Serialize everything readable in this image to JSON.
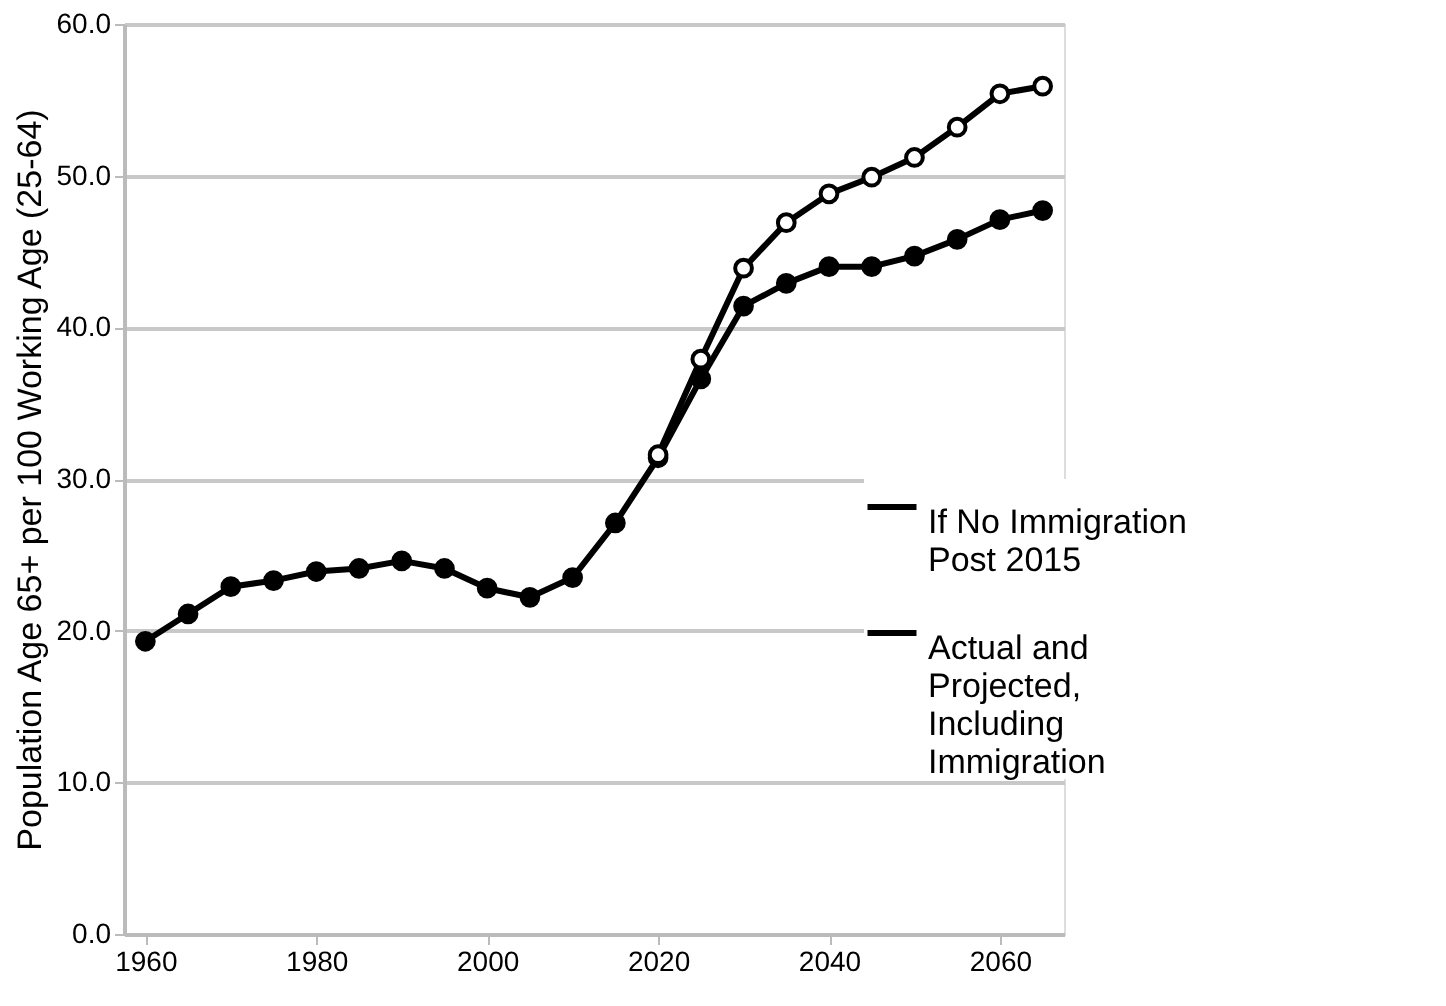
{
  "chart_data": {
    "type": "line",
    "ylabel": "Population Age 65+ per 100 Working Age (25-64)",
    "xlim": [
      1957.5,
      2067.5
    ],
    "xticks": [
      1960,
      1980,
      2000,
      2020,
      2040,
      2060
    ],
    "ylim": [
      0,
      60
    ],
    "yticks": [
      {
        "value": 0,
        "label": "0.0"
      },
      {
        "value": 10,
        "label": "10.0"
      },
      {
        "value": 20,
        "label": "20.0"
      },
      {
        "value": 30,
        "label": "30.0"
      },
      {
        "value": 40,
        "label": "40.0"
      },
      {
        "value": 50,
        "label": "50.0"
      },
      {
        "value": 60,
        "label": "60.0"
      }
    ],
    "grid": "y",
    "legend": "right",
    "marker": "circle",
    "line_style": "solid",
    "series": [
      {
        "name": "If No Immigration Post 2015",
        "color": "#000000",
        "x": [
          2020,
          2025,
          2030,
          2035,
          2040,
          2045,
          2050,
          2055,
          2060,
          2065
        ],
        "values": [
          31.6,
          37.9,
          43.9,
          46.9,
          48.8,
          49.9,
          51.2,
          53.2,
          55.4,
          55.9
        ]
      },
      {
        "name": "Actual and Projected, Including Immigration",
        "color": "#000000",
        "x": [
          1960,
          1965,
          1970,
          1975,
          1980,
          1985,
          1990,
          1995,
          2000,
          2005,
          2010,
          2015,
          2020,
          2025,
          2030,
          2035,
          2040,
          2045,
          2050,
          2055,
          2060,
          2065
        ],
        "values": [
          19.3,
          21.1,
          22.9,
          23.3,
          23.9,
          24.1,
          24.6,
          24.1,
          22.8,
          22.2,
          23.5,
          27.1,
          31.4,
          36.6,
          41.4,
          42.9,
          44.0,
          44.0,
          44.7,
          45.8,
          47.1,
          47.7
        ]
      }
    ]
  }
}
